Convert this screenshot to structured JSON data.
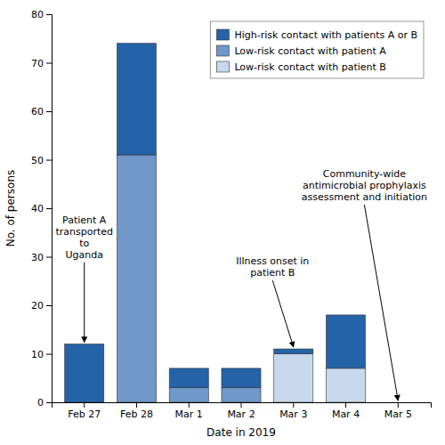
{
  "chart_data": {
    "type": "bar",
    "stacked": true,
    "xlabel": "Date in 2019",
    "ylabel": "No. of persons",
    "categories": [
      "Feb 27",
      "Feb 28",
      "Mar 1",
      "Mar 2",
      "Mar 3",
      "Mar 4",
      "Mar 5"
    ],
    "series": [
      {
        "name": "Low-risk contact with patient B",
        "color": "#c8d8ed",
        "values": [
          0,
          0,
          0,
          0,
          10,
          7,
          0
        ]
      },
      {
        "name": "Low-risk contact with patient A",
        "color": "#7098c8",
        "values": [
          0,
          51,
          3,
          3,
          0,
          0,
          0
        ]
      },
      {
        "name": "High-risk contact with patients A or B",
        "color": "#2563a8",
        "values": [
          12,
          23,
          4,
          4,
          1,
          11,
          0
        ]
      }
    ],
    "ylim": [
      0,
      80
    ],
    "yticks": [
      0,
      10,
      20,
      30,
      40,
      50,
      60,
      70,
      80
    ],
    "grid": false,
    "legend": "upper right",
    "annotations": [
      {
        "text": "Patient A\ntransported\nto\nUganda",
        "category": "Feb 27"
      },
      {
        "text": "Illness onset in\npatient B",
        "category": "Mar 3"
      },
      {
        "text": "Community-wide\nantimicrobial prophylaxis\nassessment and initiation",
        "category": "Mar 5"
      }
    ]
  }
}
